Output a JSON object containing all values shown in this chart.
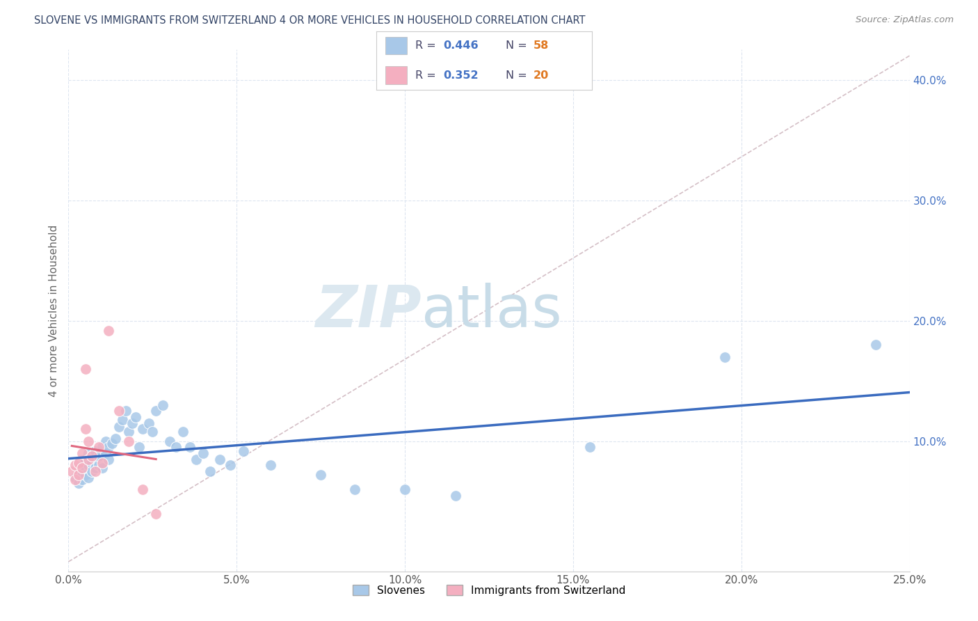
{
  "title": "SLOVENE VS IMMIGRANTS FROM SWITZERLAND 4 OR MORE VEHICLES IN HOUSEHOLD CORRELATION CHART",
  "source": "Source: ZipAtlas.com",
  "ylabel": "4 or more Vehicles in Household",
  "xlim": [
    0.0,
    0.25
  ],
  "ylim": [
    0.0,
    0.42
  ],
  "xtick_labels": [
    "0.0%",
    "5.0%",
    "10.0%",
    "15.0%",
    "20.0%",
    "25.0%"
  ],
  "xtick_vals": [
    0.0,
    0.05,
    0.1,
    0.15,
    0.2,
    0.25
  ],
  "ytick_labels": [
    "10.0%",
    "20.0%",
    "30.0%",
    "40.0%"
  ],
  "ytick_vals": [
    0.1,
    0.2,
    0.3,
    0.4
  ],
  "r_slovene": 0.446,
  "n_slovene": 58,
  "r_swiss": 0.352,
  "n_swiss": 20,
  "slovene_color": "#a8c8e8",
  "swiss_color": "#f4afc0",
  "line_color_slovene": "#3a6bbf",
  "line_color_swiss": "#e06880",
  "trendline_color": "#d0c0c8",
  "background_color": "#ffffff",
  "grid_color": "#dde5f0",
  "watermark_zip": "ZIP",
  "watermark_atlas": "atlas",
  "slovene_x": [
    0.002,
    0.003,
    0.003,
    0.004,
    0.004,
    0.004,
    0.005,
    0.005,
    0.005,
    0.006,
    0.006,
    0.006,
    0.007,
    0.007,
    0.007,
    0.008,
    0.008,
    0.008,
    0.009,
    0.009,
    0.01,
    0.01,
    0.011,
    0.011,
    0.012,
    0.012,
    0.013,
    0.014,
    0.015,
    0.016,
    0.017,
    0.018,
    0.019,
    0.02,
    0.021,
    0.022,
    0.024,
    0.025,
    0.026,
    0.028,
    0.03,
    0.032,
    0.034,
    0.036,
    0.038,
    0.04,
    0.042,
    0.045,
    0.048,
    0.052,
    0.06,
    0.075,
    0.085,
    0.1,
    0.115,
    0.155,
    0.195,
    0.24
  ],
  "slovene_y": [
    0.07,
    0.065,
    0.075,
    0.08,
    0.068,
    0.075,
    0.078,
    0.072,
    0.085,
    0.08,
    0.09,
    0.07,
    0.082,
    0.088,
    0.075,
    0.085,
    0.078,
    0.092,
    0.08,
    0.088,
    0.095,
    0.078,
    0.1,
    0.09,
    0.095,
    0.085,
    0.098,
    0.102,
    0.112,
    0.118,
    0.125,
    0.108,
    0.115,
    0.12,
    0.095,
    0.11,
    0.115,
    0.108,
    0.125,
    0.13,
    0.1,
    0.095,
    0.108,
    0.095,
    0.085,
    0.09,
    0.075,
    0.085,
    0.08,
    0.092,
    0.08,
    0.072,
    0.06,
    0.06,
    0.055,
    0.095,
    0.17,
    0.18
  ],
  "swiss_x": [
    0.001,
    0.002,
    0.002,
    0.003,
    0.003,
    0.004,
    0.004,
    0.005,
    0.005,
    0.006,
    0.006,
    0.007,
    0.008,
    0.009,
    0.01,
    0.012,
    0.015,
    0.018,
    0.022,
    0.026
  ],
  "swiss_y": [
    0.075,
    0.068,
    0.08,
    0.072,
    0.082,
    0.09,
    0.078,
    0.16,
    0.11,
    0.1,
    0.085,
    0.088,
    0.075,
    0.095,
    0.082,
    0.192,
    0.125,
    0.1,
    0.06,
    0.04
  ],
  "legend_r_color": "#4472c4",
  "legend_n_color": "#e07820",
  "legend_label_color": "#444466"
}
